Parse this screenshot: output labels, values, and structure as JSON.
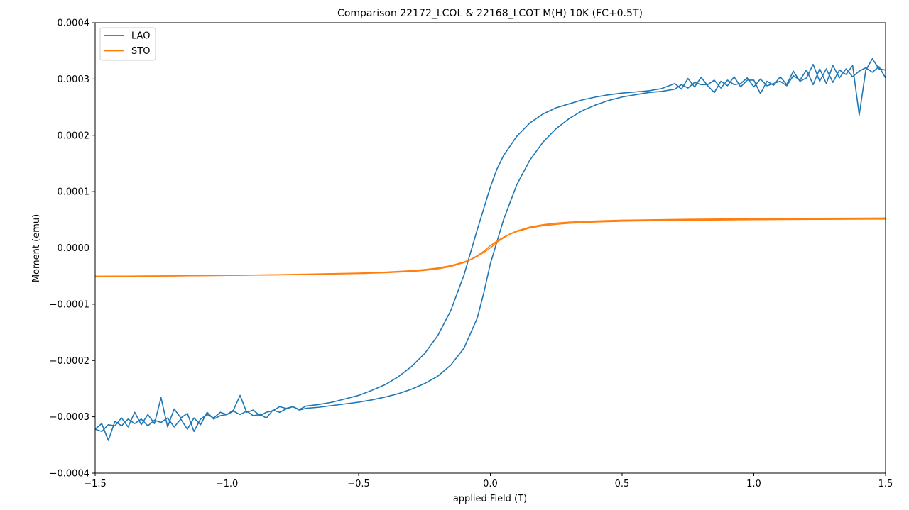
{
  "chart_data": {
    "type": "line",
    "title": "Comparison 22172_LCOL & 22168_LCOT M(H) 10K (FC+0.5T)",
    "xlabel": "applied Field (T)",
    "ylabel": "Moment (emu)",
    "xlim": [
      -1.5,
      1.5
    ],
    "ylim": [
      -0.0004,
      0.0004
    ],
    "x_ticks": [
      -1.5,
      -1.0,
      -0.5,
      0.0,
      0.5,
      1.0,
      1.5
    ],
    "x_tick_labels": [
      "−1.5",
      "−1.0",
      "−0.5",
      "0.0",
      "0.5",
      "1.0",
      "1.5"
    ],
    "y_ticks": [
      -0.0004,
      -0.0003,
      -0.0002,
      -0.0001,
      0.0,
      0.0001,
      0.0002,
      0.0003,
      0.0004
    ],
    "y_tick_labels": [
      "−0.0004",
      "−0.0003",
      "−0.0002",
      "−0.0001",
      "0.0000",
      "0.0001",
      "0.0002",
      "0.0003",
      "0.0004"
    ],
    "grid": false,
    "legend_position": "top-left",
    "series": [
      {
        "name": "LAO",
        "color": "#1f77b4",
        "branches": [
          {
            "x": [
              -1.5,
              -1.475,
              -1.45,
              -1.425,
              -1.4,
              -1.375,
              -1.35,
              -1.325,
              -1.3,
              -1.275,
              -1.25,
              -1.225,
              -1.2,
              -1.175,
              -1.15,
              -1.125,
              -1.1,
              -1.075,
              -1.05,
              -1.025,
              -1.0,
              -0.975,
              -0.95,
              -0.925,
              -0.9,
              -0.875,
              -0.85,
              -0.825,
              -0.8,
              -0.775,
              -0.75,
              -0.725,
              -0.7,
              -0.65,
              -0.6,
              -0.55,
              -0.5,
              -0.45,
              -0.4,
              -0.35,
              -0.3,
              -0.25,
              -0.2,
              -0.15,
              -0.1,
              -0.05,
              0.0,
              0.025,
              0.05,
              0.1,
              0.15,
              0.2,
              0.25,
              0.3,
              0.35,
              0.4,
              0.45,
              0.5,
              0.55,
              0.6,
              0.65,
              0.7,
              0.725,
              0.75,
              0.775,
              0.8,
              0.825,
              0.85,
              0.875,
              0.9,
              0.925,
              0.95,
              0.975,
              1.0,
              1.025,
              1.05,
              1.075,
              1.1,
              1.125,
              1.15,
              1.175,
              1.2,
              1.225,
              1.25,
              1.275,
              1.3,
              1.325,
              1.35,
              1.375,
              1.4,
              1.425,
              1.45,
              1.475,
              1.5
            ],
            "y": [
              -0.000322,
              -0.000326,
              -0.000314,
              -0.000316,
              -0.000302,
              -0.000318,
              -0.000292,
              -0.000314,
              -0.000296,
              -0.000312,
              -0.000266,
              -0.000318,
              -0.000286,
              -0.000302,
              -0.000294,
              -0.000326,
              -0.000304,
              -0.000296,
              -0.000302,
              -0.000292,
              -0.000296,
              -0.000288,
              -0.000262,
              -0.000292,
              -0.000288,
              -0.000298,
              -0.000292,
              -0.000289,
              -0.000282,
              -0.000285,
              -0.000282,
              -0.000287,
              -0.000281,
              -0.000278,
              -0.000274,
              -0.000268,
              -0.000262,
              -0.000253,
              -0.000243,
              -0.000229,
              -0.000211,
              -0.000188,
              -0.000156,
              -0.000111,
              -4.8e-05,
              3.2e-05,
              0.000108,
              0.00014,
              0.000164,
              0.000198,
              0.000222,
              0.000238,
              0.000249,
              0.000256,
              0.000263,
              0.000268,
              0.000272,
              0.000275,
              0.000277,
              0.000279,
              0.000283,
              0.000292,
              0.000282,
              0.000301,
              0.000286,
              0.000303,
              0.000288,
              0.000276,
              0.000296,
              0.000288,
              0.000304,
              0.000286,
              0.000298,
              0.000298,
              0.000274,
              0.000296,
              0.000289,
              0.000304,
              0.00029,
              0.000314,
              0.000296,
              0.000302,
              0.000326,
              0.000296,
              0.000318,
              0.000294,
              0.000316,
              0.000308,
              0.000324,
              0.000236,
              0.000316,
              0.000336,
              0.000318,
              0.000316
            ]
          },
          {
            "x": [
              1.5,
              1.475,
              1.45,
              1.425,
              1.4,
              1.375,
              1.35,
              1.325,
              1.3,
              1.275,
              1.25,
              1.225,
              1.2,
              1.175,
              1.15,
              1.125,
              1.1,
              1.075,
              1.05,
              1.025,
              1.0,
              0.975,
              0.95,
              0.925,
              0.9,
              0.875,
              0.85,
              0.825,
              0.8,
              0.775,
              0.75,
              0.725,
              0.7,
              0.65,
              0.6,
              0.55,
              0.5,
              0.45,
              0.4,
              0.35,
              0.3,
              0.25,
              0.2,
              0.15,
              0.1,
              0.05,
              0.0,
              -0.025,
              -0.05,
              -0.1,
              -0.15,
              -0.2,
              -0.25,
              -0.3,
              -0.35,
              -0.4,
              -0.45,
              -0.5,
              -0.55,
              -0.6,
              -0.65,
              -0.7,
              -0.725,
              -0.75,
              -0.775,
              -0.8,
              -0.825,
              -0.85,
              -0.875,
              -0.9,
              -0.925,
              -0.95,
              -0.975,
              -1.0,
              -1.025,
              -1.05,
              -1.075,
              -1.1,
              -1.125,
              -1.15,
              -1.175,
              -1.2,
              -1.225,
              -1.25,
              -1.275,
              -1.3,
              -1.325,
              -1.35,
              -1.375,
              -1.4,
              -1.425,
              -1.45,
              -1.475,
              -1.5
            ],
            "y": [
              0.000302,
              0.000322,
              0.000312,
              0.00032,
              0.000314,
              0.000304,
              0.000318,
              0.000302,
              0.000324,
              0.000292,
              0.000318,
              0.00029,
              0.000316,
              0.000298,
              0.000306,
              0.000288,
              0.000296,
              0.000292,
              0.000288,
              0.0003,
              0.000286,
              0.000302,
              0.000292,
              0.00029,
              0.000298,
              0.000284,
              0.000298,
              0.00029,
              0.00029,
              0.000294,
              0.000284,
              0.00029,
              0.000282,
              0.000278,
              0.000276,
              0.000272,
              0.000268,
              0.000262,
              0.000254,
              0.000244,
              0.00023,
              0.000212,
              0.000188,
              0.000156,
              0.000112,
              5e-05,
              -2.8e-05,
              -8e-05,
              -0.000125,
              -0.000178,
              -0.000208,
              -0.000228,
              -0.000241,
              -0.000251,
              -0.000259,
              -0.000265,
              -0.00027,
              -0.000274,
              -0.000277,
              -0.00028,
              -0.000283,
              -0.000285,
              -0.000288,
              -0.000282,
              -0.000286,
              -0.000292,
              -0.000288,
              -0.000302,
              -0.000296,
              -0.000298,
              -0.00029,
              -0.000296,
              -0.00029,
              -0.000296,
              -0.000298,
              -0.000304,
              -0.000292,
              -0.000314,
              -0.000302,
              -0.000322,
              -0.000304,
              -0.000318,
              -0.000302,
              -0.00031,
              -0.000306,
              -0.000316,
              -0.000304,
              -0.000312,
              -0.000304,
              -0.000316,
              -0.000308,
              -0.000342,
              -0.000312,
              -0.000322
            ]
          }
        ]
      },
      {
        "name": "STO",
        "color": "#ff7f0e",
        "branches": [
          {
            "x": [
              -1.5,
              -1.25,
              -1.0,
              -0.75,
              -0.5,
              -0.4,
              -0.3,
              -0.25,
              -0.2,
              -0.15,
              -0.1,
              -0.075,
              -0.05,
              -0.025,
              0.0,
              0.025,
              0.05,
              0.075,
              0.1,
              0.15,
              0.2,
              0.25,
              0.3,
              0.4,
              0.5,
              0.75,
              1.0,
              1.25,
              1.5
            ],
            "y": [
              -5.05e-05,
              -4.98e-05,
              -4.88e-05,
              -4.75e-05,
              -4.55e-05,
              -4.4e-05,
              -4.18e-05,
              -4e-05,
              -3.72e-05,
              -3.3e-05,
              -2.6e-05,
              -2.1e-05,
              -1.5e-05,
              -8e-06,
              0.0,
              1e-05,
              1.8e-05,
              2.45e-05,
              2.9e-05,
              3.55e-05,
              3.95e-05,
              4.2e-05,
              4.38e-05,
              4.6e-05,
              4.75e-05,
              4.92e-05,
              5.02e-05,
              5.08e-05,
              5.12e-05
            ]
          },
          {
            "x": [
              1.5,
              1.25,
              1.0,
              0.75,
              0.5,
              0.4,
              0.3,
              0.25,
              0.2,
              0.15,
              0.1,
              0.075,
              0.05,
              0.025,
              0.0,
              -0.025,
              -0.05,
              -0.075,
              -0.1,
              -0.15,
              -0.2,
              -0.25,
              -0.3,
              -0.4,
              -0.5,
              -0.75,
              -1.0,
              -1.25,
              -1.5
            ],
            "y": [
              5.3e-05,
              5.25e-05,
              5.18e-05,
              5.08e-05,
              4.92e-05,
              4.78e-05,
              4.58e-05,
              4.4e-05,
              4.12e-05,
              3.7e-05,
              3e-05,
              2.5e-05,
              1.9e-05,
              1.2e-05,
              4e-06,
              -6e-06,
              -1.4e-05,
              -2.05e-05,
              -2.5e-05,
              -3.15e-05,
              -3.58e-05,
              -3.85e-05,
              -4.05e-05,
              -4.3e-05,
              -4.48e-05,
              -4.72e-05,
              -4.88e-05,
              -4.98e-05,
              -5.05e-05
            ]
          }
        ]
      }
    ]
  }
}
